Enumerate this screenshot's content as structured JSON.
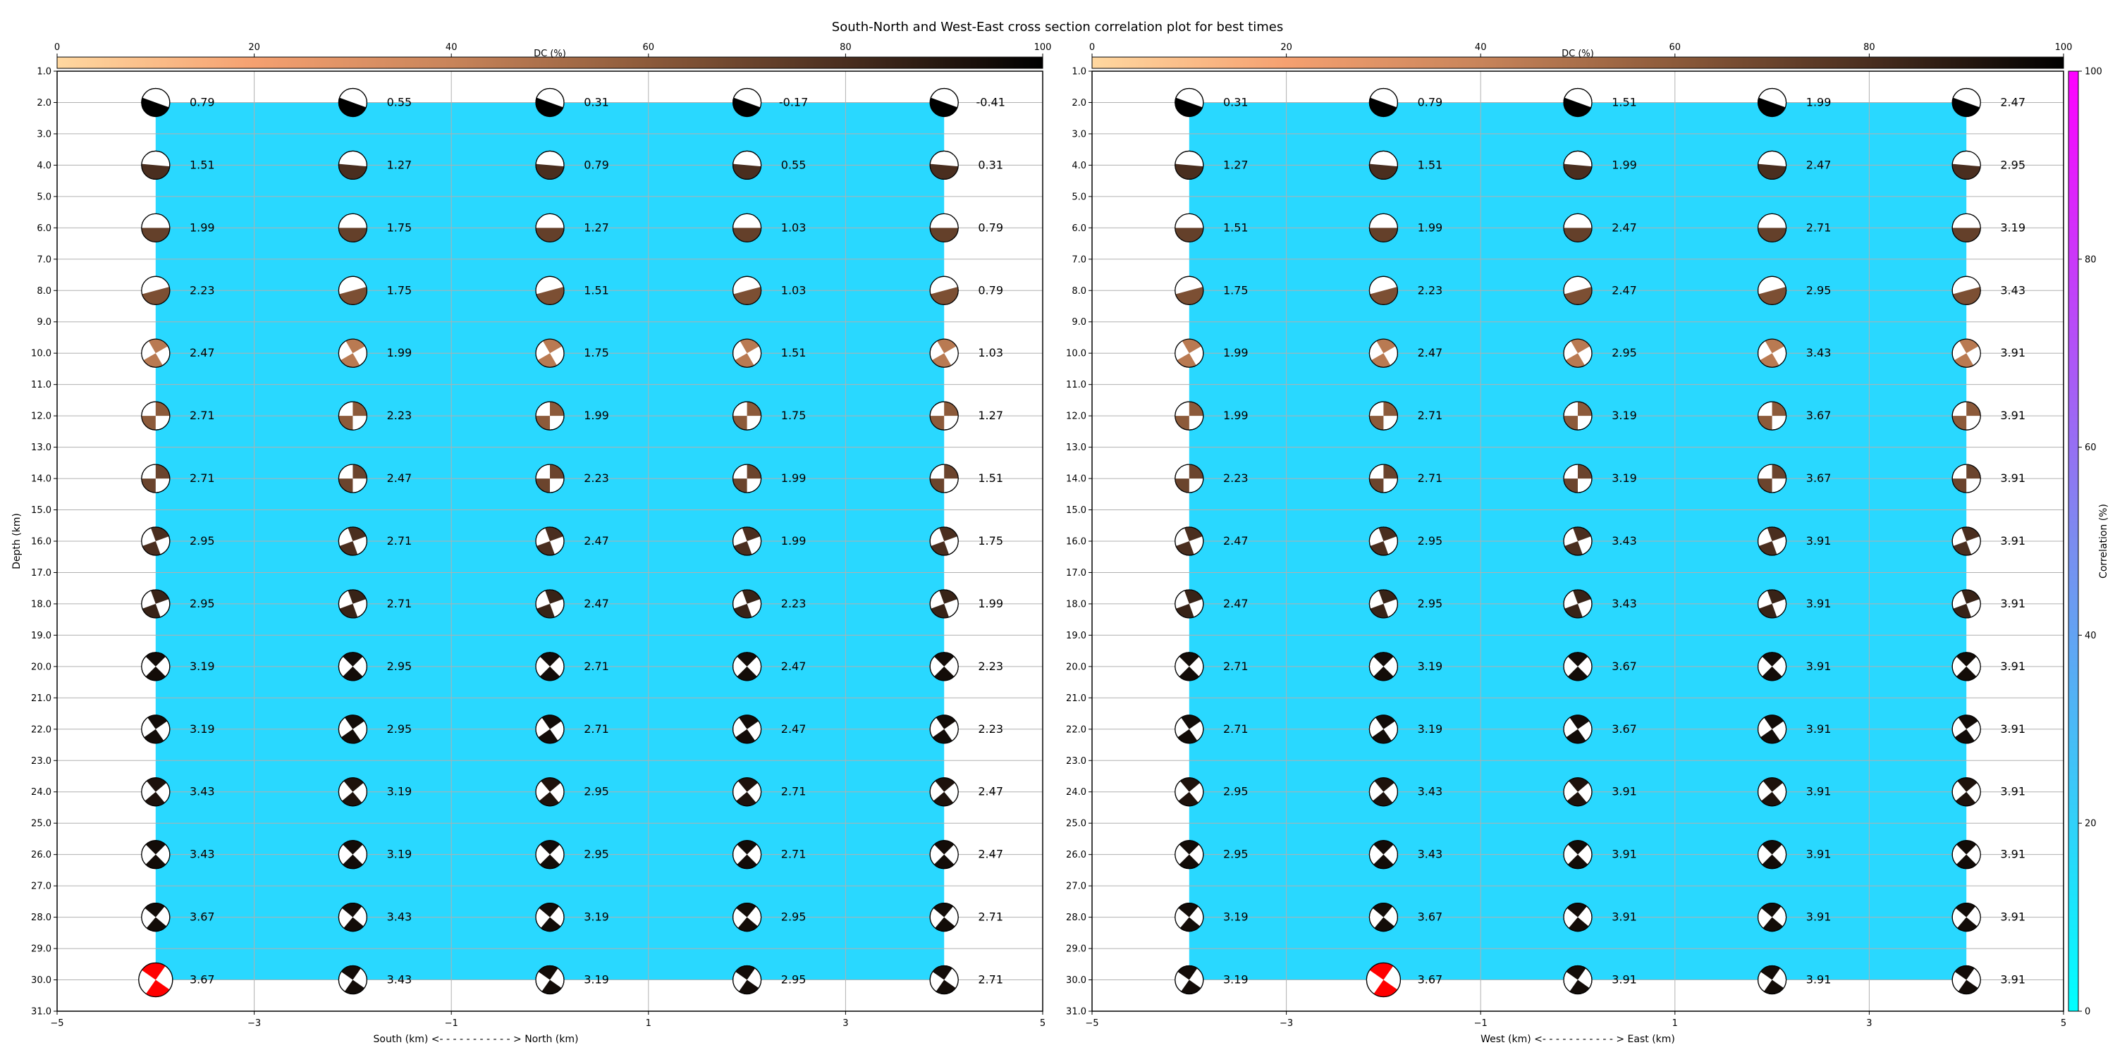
{
  "title": "South-North and West-East cross section correlation plot for best times",
  "colors": {
    "background_fill": "#29d8ff",
    "grid": "#b0b0b0",
    "best_solution": "#ff0000",
    "dc_colormap": [
      "#ffd8a0",
      "#f5a070",
      "#c8845a",
      "#8c5a3a",
      "#4a2e1f",
      "#000000"
    ],
    "correlation_colormap": [
      "#00ffff",
      "#7b8cf0",
      "#ff00ff"
    ]
  },
  "dc_colorbar": {
    "label": "DC (%)",
    "ticks": [
      "0",
      "20",
      "40",
      "60",
      "80",
      "100"
    ]
  },
  "correlation_colorbar": {
    "label": "Correlation (%)",
    "ticks": [
      "0",
      "20",
      "40",
      "60",
      "80",
      "100"
    ]
  },
  "y_axis": {
    "label": "Depth (km)",
    "ticks": [
      "1.0",
      "2.0",
      "3.0",
      "4.0",
      "5.0",
      "6.0",
      "7.0",
      "8.0",
      "9.0",
      "10.0",
      "11.0",
      "12.0",
      "13.0",
      "14.0",
      "15.0",
      "16.0",
      "17.0",
      "18.0",
      "19.0",
      "20.0",
      "21.0",
      "22.0",
      "23.0",
      "24.0",
      "25.0",
      "26.0",
      "27.0",
      "28.0",
      "29.0",
      "30.0",
      "31.0"
    ]
  },
  "chart_data": [
    {
      "type": "scatter",
      "panel": "South-North",
      "xlabel": "South (km) <- - - - - - - - - - - > North (km)",
      "xlim": [
        -5,
        5
      ],
      "ylim": [
        31,
        1
      ],
      "xticks": [
        "−5",
        "−3",
        "−1",
        "1",
        "3",
        "5"
      ],
      "x": [
        -4,
        -2,
        0,
        2,
        4
      ],
      "depths": [
        2,
        4,
        6,
        8,
        10,
        12,
        14,
        16,
        18,
        20,
        22,
        24,
        26,
        28,
        30
      ],
      "best": {
        "x": -4,
        "depth": 30
      },
      "values": [
        [
          "0.79",
          "0.55",
          "0.31",
          "-0.17",
          "-0.41"
        ],
        [
          "1.51",
          "1.27",
          "0.79",
          "0.55",
          "0.31"
        ],
        [
          "1.99",
          "1.75",
          "1.27",
          "1.03",
          "0.79"
        ],
        [
          "2.23",
          "1.75",
          "1.51",
          "1.03",
          "0.79"
        ],
        [
          "2.47",
          "1.99",
          "1.75",
          "1.51",
          "1.03"
        ],
        [
          "2.71",
          "2.23",
          "1.99",
          "1.75",
          "1.27"
        ],
        [
          "2.71",
          "2.47",
          "2.23",
          "1.99",
          "1.51"
        ],
        [
          "2.95",
          "2.71",
          "2.47",
          "1.99",
          "1.75"
        ],
        [
          "2.95",
          "2.71",
          "2.47",
          "2.23",
          "1.99"
        ],
        [
          "3.19",
          "2.95",
          "2.71",
          "2.47",
          "2.23"
        ],
        [
          "3.19",
          "2.95",
          "2.71",
          "2.47",
          "2.23"
        ],
        [
          "3.43",
          "3.19",
          "2.95",
          "2.71",
          "2.47"
        ],
        [
          "3.43",
          "3.19",
          "2.95",
          "2.71",
          "2.47"
        ],
        [
          "3.67",
          "3.43",
          "3.19",
          "2.95",
          "2.71"
        ],
        [
          "3.67",
          "3.43",
          "3.19",
          "2.95",
          "2.71"
        ]
      ]
    },
    {
      "type": "scatter",
      "panel": "West-East",
      "xlabel": "West (km) <- - - - - - - - - - - > East (km)",
      "xlim": [
        -5,
        5
      ],
      "ylim": [
        31,
        1
      ],
      "xticks": [
        "−5",
        "−3",
        "−1",
        "1",
        "3",
        "5"
      ],
      "x": [
        -4,
        -2,
        0,
        2,
        4
      ],
      "depths": [
        2,
        4,
        6,
        8,
        10,
        12,
        14,
        16,
        18,
        20,
        22,
        24,
        26,
        28,
        30
      ],
      "best": {
        "x": -2,
        "depth": 30
      },
      "values": [
        [
          "0.31",
          "0.79",
          "1.51",
          "1.99",
          "2.47"
        ],
        [
          "1.27",
          "1.51",
          "1.99",
          "2.47",
          "2.95"
        ],
        [
          "1.51",
          "1.99",
          "2.47",
          "2.71",
          "3.19"
        ],
        [
          "1.75",
          "2.23",
          "2.47",
          "2.95",
          "3.43"
        ],
        [
          "1.99",
          "2.47",
          "2.95",
          "3.43",
          "3.91"
        ],
        [
          "1.99",
          "2.71",
          "3.19",
          "3.67",
          "3.91"
        ],
        [
          "2.23",
          "2.71",
          "3.19",
          "3.67",
          "3.91"
        ],
        [
          "2.47",
          "2.95",
          "3.43",
          "3.91",
          "3.91"
        ],
        [
          "2.47",
          "2.95",
          "3.43",
          "3.91",
          "3.91"
        ],
        [
          "2.71",
          "3.19",
          "3.67",
          "3.91",
          "3.91"
        ],
        [
          "2.71",
          "3.19",
          "3.67",
          "3.91",
          "3.91"
        ],
        [
          "2.95",
          "3.43",
          "3.91",
          "3.91",
          "3.91"
        ],
        [
          "2.95",
          "3.43",
          "3.91",
          "3.91",
          "3.91"
        ],
        [
          "3.19",
          "3.67",
          "3.91",
          "3.91",
          "3.91"
        ],
        [
          "3.19",
          "3.67",
          "3.91",
          "3.91",
          "3.91"
        ]
      ]
    }
  ],
  "beachball_styles": {
    "depths": [
      2,
      4,
      6,
      8,
      10,
      12,
      14,
      16,
      18,
      20,
      22,
      24,
      26,
      28,
      30
    ],
    "rotation_deg": [
      20,
      5,
      0,
      -15,
      60,
      90,
      90,
      70,
      70,
      45,
      55,
      50,
      45,
      40,
      35
    ],
    "dc_percent": [
      100,
      80,
      72,
      65,
      45,
      60,
      70,
      80,
      85,
      95,
      95,
      92,
      95,
      95,
      95
    ]
  }
}
